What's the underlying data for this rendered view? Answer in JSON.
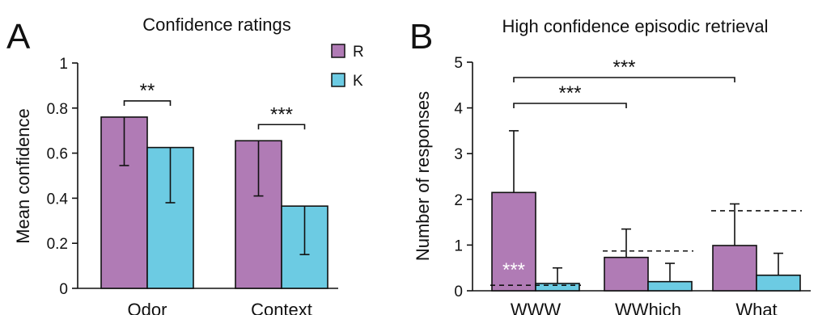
{
  "colors": {
    "r": "#b07bb5",
    "k": "#6ccbe3",
    "stroke": "#111111",
    "sig_inside": "#ffffff"
  },
  "legend": {
    "r_label": "R",
    "k_label": "K"
  },
  "chart_data": [
    {
      "panel_label": "A",
      "type": "bar",
      "title": "Confidence ratings",
      "ylabel": "Mean confidence",
      "xlabel": "",
      "ylim": [
        0,
        1
      ],
      "yticks": [
        0,
        0.2,
        0.4,
        0.6,
        0.8,
        1
      ],
      "ytick_labels": [
        "0",
        "0.2",
        "0.4",
        "0.6",
        "0.8",
        "1"
      ],
      "categories": [
        "Odor",
        "Context"
      ],
      "series": [
        {
          "name": "R",
          "values": [
            0.76,
            0.655
          ],
          "err_low": [
            0.545,
            0.41
          ],
          "err_high": [
            0.76,
            0.655
          ]
        },
        {
          "name": "K",
          "values": [
            0.625,
            0.365
          ],
          "err_low": [
            0.38,
            0.15
          ],
          "err_high": [
            0.625,
            0.365
          ]
        }
      ],
      "significance": [
        {
          "category_index": 0,
          "label": "**"
        },
        {
          "category_index": 1,
          "label": "***"
        }
      ],
      "legend_position": "top-right"
    },
    {
      "panel_label": "B",
      "type": "bar",
      "title": "High confidence episodic retrieval",
      "ylabel": "Number of responses",
      "xlabel": "",
      "ylim": [
        0,
        5
      ],
      "yticks": [
        0,
        1,
        2,
        3,
        4,
        5
      ],
      "ytick_labels": [
        "0",
        "1",
        "2",
        "3",
        "4",
        "5"
      ],
      "categories": [
        "WWW",
        "WWhich",
        "What"
      ],
      "series": [
        {
          "name": "R",
          "values": [
            2.15,
            0.73,
            0.99
          ],
          "err_high": [
            3.5,
            1.35,
            1.9
          ]
        },
        {
          "name": "K",
          "values": [
            0.16,
            0.2,
            0.34
          ],
          "err_high": [
            0.5,
            0.6,
            0.82
          ]
        }
      ],
      "chance_levels": [
        0.12,
        0.87,
        1.75
      ],
      "inside_significance": {
        "category_index": 0,
        "label": "***"
      },
      "comparisons": [
        {
          "from_index": 0,
          "to_index": 1,
          "label": "***"
        },
        {
          "from_index": 0,
          "to_index": 2,
          "label": "***"
        }
      ]
    }
  ]
}
